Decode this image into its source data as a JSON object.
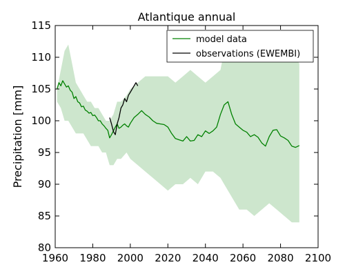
{
  "chart_data": {
    "type": "line",
    "title": "Atlantique annual",
    "xlabel": "",
    "ylabel": "Precipitation [mm]",
    "xlim": [
      1960,
      2100
    ],
    "ylim": [
      80,
      115
    ],
    "xticks": [
      1960,
      1980,
      2000,
      2020,
      2040,
      2060,
      2080,
      2100
    ],
    "yticks": [
      80,
      85,
      90,
      95,
      100,
      105,
      110,
      115
    ],
    "grid": false,
    "legend_position": "top-right",
    "colors": {
      "model": "#008000",
      "band": "#cde6cd",
      "obs": "#000000"
    },
    "series": [
      {
        "name": "model data",
        "x": [
          1961,
          1962,
          1963,
          1964,
          1965,
          1966,
          1967,
          1968,
          1969,
          1970,
          1971,
          1972,
          1973,
          1974,
          1975,
          1976,
          1977,
          1978,
          1979,
          1980,
          1981,
          1982,
          1983,
          1984,
          1985,
          1986,
          1987,
          1988,
          1989,
          1990,
          1991,
          1992,
          1993,
          1994,
          1995,
          1996,
          1997,
          1998,
          1999,
          2000,
          2002,
          2004,
          2006,
          2008,
          2010,
          2012,
          2014,
          2016,
          2018,
          2020,
          2022,
          2024,
          2026,
          2028,
          2030,
          2032,
          2034,
          2036,
          2038,
          2040,
          2042,
          2044,
          2046,
          2048,
          2050,
          2052,
          2054,
          2056,
          2058,
          2060,
          2062,
          2064,
          2066,
          2068,
          2070,
          2072,
          2074,
          2076,
          2078,
          2080,
          2082,
          2084,
          2086,
          2088,
          2090
        ],
        "values": [
          105.0,
          106.0,
          105.5,
          106.3,
          105.8,
          105.3,
          105.5,
          104.8,
          104.5,
          103.5,
          103.8,
          103.0,
          102.8,
          102.2,
          102.3,
          101.7,
          101.5,
          101.2,
          101.3,
          100.8,
          100.9,
          100.5,
          100.0,
          100.0,
          99.5,
          99.2,
          98.8,
          98.5,
          97.3,
          97.8,
          98.4,
          99.0,
          99.5,
          98.8,
          99.0,
          99.3,
          99.5,
          99.2,
          99.0,
          99.6,
          100.5,
          101.0,
          101.6,
          101.0,
          100.6,
          100.0,
          99.6,
          99.5,
          99.4,
          99.0,
          98.0,
          97.2,
          97.0,
          96.8,
          97.5,
          96.8,
          96.9,
          97.8,
          97.5,
          98.4,
          98.0,
          98.4,
          99.0,
          101.0,
          102.5,
          103.0,
          101.0,
          99.5,
          99.0,
          98.5,
          98.2,
          97.5,
          97.8,
          97.4,
          96.5,
          96.0,
          97.5,
          98.5,
          98.6,
          97.6,
          97.3,
          96.9,
          96.0,
          95.8,
          96.1
        ]
      },
      {
        "name": "observations (EWEMBI)",
        "x": [
          1989,
          1990,
          1991,
          1992,
          1993,
          1994,
          1995,
          1996,
          1997,
          1998,
          1999,
          2000,
          2001,
          2002,
          2003,
          2004
        ],
        "values": [
          100.5,
          99.5,
          98.3,
          97.8,
          99.5,
          100.5,
          102.0,
          102.5,
          103.5,
          103.0,
          104.0,
          104.5,
          105.0,
          105.5,
          106.0,
          105.5
        ]
      }
    ],
    "band": {
      "x": [
        1961,
        1963,
        1965,
        1967,
        1969,
        1971,
        1973,
        1975,
        1977,
        1979,
        1981,
        1983,
        1985,
        1987,
        1989,
        1991,
        1993,
        1995,
        1998,
        2000,
        2004,
        2008,
        2012,
        2016,
        2020,
        2024,
        2028,
        2032,
        2036,
        2040,
        2044,
        2048,
        2050,
        2052,
        2054,
        2058,
        2062,
        2066,
        2070,
        2074,
        2078,
        2082,
        2086,
        2088,
        2090
      ],
      "upper": [
        105,
        108,
        111,
        112,
        109,
        106,
        105,
        104,
        103,
        103,
        102,
        102,
        101,
        100,
        100,
        101,
        103,
        103,
        104,
        105,
        106,
        107,
        107,
        107,
        107,
        106,
        107,
        108,
        107,
        106,
        107,
        108,
        111,
        113,
        113,
        112,
        111,
        110,
        110,
        112,
        111,
        110,
        111,
        110,
        109
      ],
      "lower": [
        103,
        102,
        100,
        100,
        99,
        98,
        98,
        98,
        97,
        96,
        96,
        96,
        95,
        95,
        93,
        93,
        94,
        94,
        95,
        94,
        93,
        92,
        91,
        90,
        89,
        90,
        90,
        91,
        90,
        92,
        92,
        91,
        90,
        89,
        88,
        86,
        86,
        85,
        86,
        87,
        86,
        85,
        84,
        84,
        84
      ]
    }
  }
}
